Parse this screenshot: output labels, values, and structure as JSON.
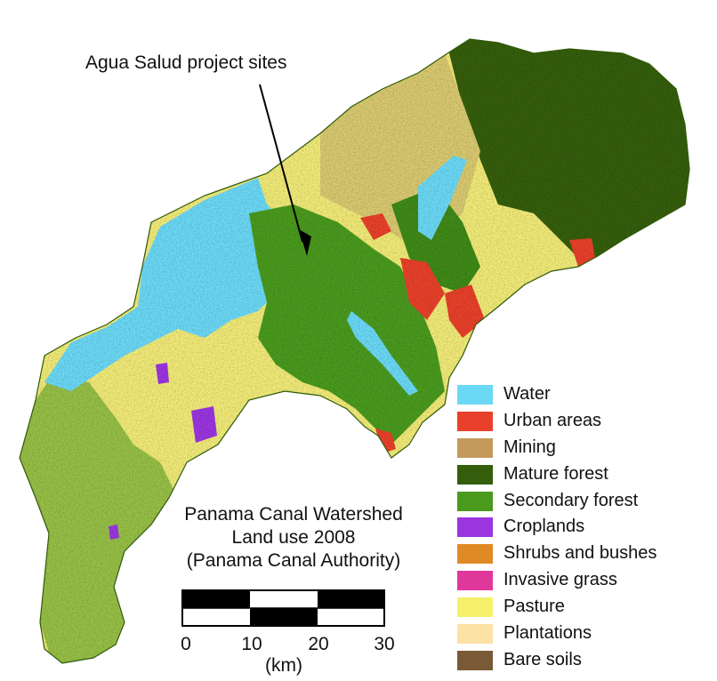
{
  "annotation": "Agua Salud project sites",
  "title_lines": [
    "Panama Canal Watershed",
    "Land use 2008",
    "(Panama Canal Authority)"
  ],
  "legend": [
    {
      "label": "Water",
      "color": "#6bd8f5"
    },
    {
      "label": "Urban areas",
      "color": "#e8402a"
    },
    {
      "label": "Mining",
      "color": "#c49a5c"
    },
    {
      "label": "Mature forest",
      "color": "#355e0c"
    },
    {
      "label": "Secondary forest",
      "color": "#4a9a1e"
    },
    {
      "label": "Croplands",
      "color": "#9b35e0"
    },
    {
      "label": "Shrubs and bushes",
      "color": "#e08a26"
    },
    {
      "label": "Invasive grass",
      "color": "#e0389a"
    },
    {
      "label": "Pasture",
      "color": "#f7f06a"
    },
    {
      "label": "Plantations",
      "color": "#fde2a6"
    },
    {
      "label": "Bare soils",
      "color": "#7a5a36"
    }
  ],
  "scale": {
    "ticks": [
      "0",
      "10",
      "20",
      "30"
    ],
    "unit": "(km)"
  }
}
